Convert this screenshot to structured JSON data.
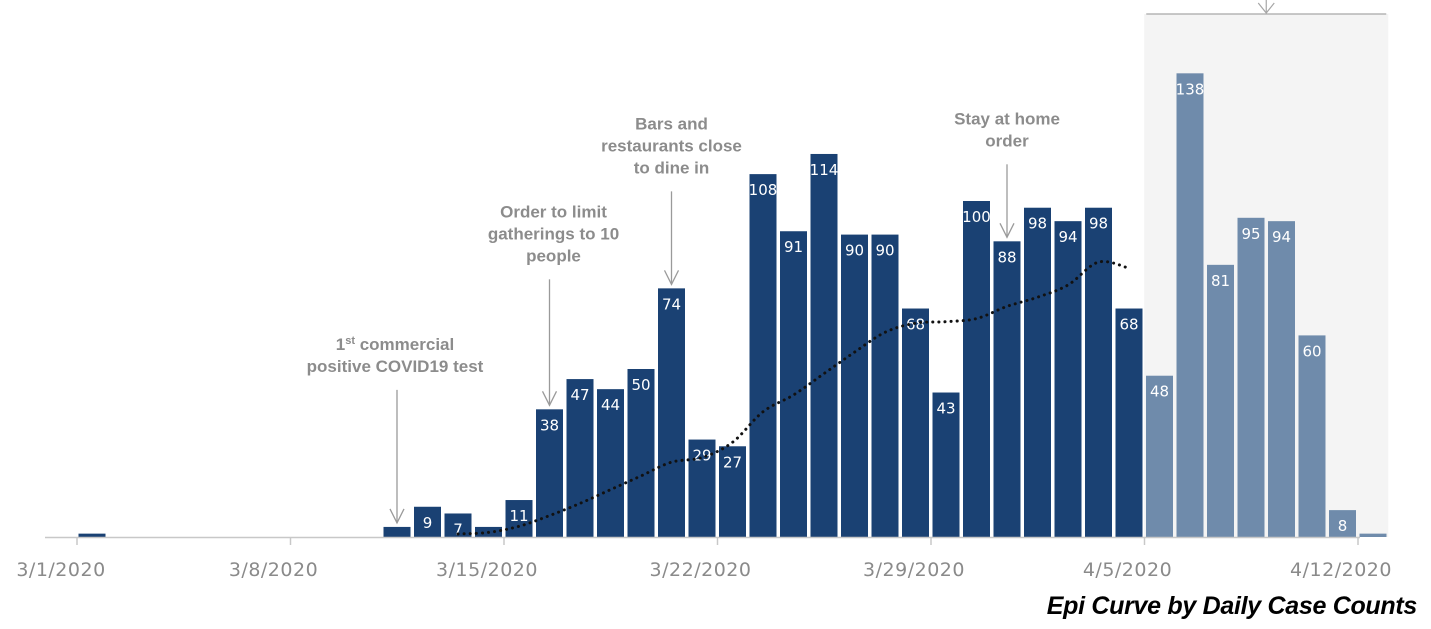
{
  "chart_data": {
    "type": "bar",
    "title": "",
    "caption": "Epi Curve by Daily Case Counts",
    "xlabel": "",
    "ylabel": "",
    "ylim": [
      0,
      150
    ],
    "grid": false,
    "colors": {
      "confirmed": "#1a4173",
      "recent": "#6f8bab",
      "recent_band": "#f4f4f4",
      "trend": "#111111",
      "axis": "#c8c8c8",
      "annotation": "#8c8c8c",
      "caption": "#000000"
    },
    "x_ticks": [
      "3/1/2020",
      "3/8/2020",
      "3/15/2020",
      "3/22/2020",
      "3/29/2020",
      "4/5/2020",
      "4/12/2020"
    ],
    "days": [
      {
        "date": "3/1/2020",
        "value": 1,
        "label": "",
        "recent": false
      },
      {
        "date": "3/2/2020",
        "value": 0,
        "label": "",
        "recent": false
      },
      {
        "date": "3/3/2020",
        "value": 0,
        "label": "",
        "recent": false
      },
      {
        "date": "3/4/2020",
        "value": 0,
        "label": "",
        "recent": false
      },
      {
        "date": "3/5/2020",
        "value": 0,
        "label": "",
        "recent": false
      },
      {
        "date": "3/6/2020",
        "value": 0,
        "label": "",
        "recent": false
      },
      {
        "date": "3/7/2020",
        "value": 0,
        "label": "",
        "recent": false
      },
      {
        "date": "3/8/2020",
        "value": 0,
        "label": "",
        "recent": false
      },
      {
        "date": "3/9/2020",
        "value": 0,
        "label": "",
        "recent": false
      },
      {
        "date": "3/10/2020",
        "value": 0,
        "label": "",
        "recent": false
      },
      {
        "date": "3/11/2020",
        "value": 3,
        "label": "",
        "recent": false
      },
      {
        "date": "3/12/2020",
        "value": 9,
        "label": "9",
        "recent": false
      },
      {
        "date": "3/13/2020",
        "value": 7,
        "label": "7",
        "recent": false
      },
      {
        "date": "3/14/2020",
        "value": 3,
        "label": "",
        "recent": false
      },
      {
        "date": "3/15/2020",
        "value": 11,
        "label": "11",
        "recent": false
      },
      {
        "date": "3/16/2020",
        "value": 38,
        "label": "38",
        "recent": false
      },
      {
        "date": "3/17/2020",
        "value": 47,
        "label": "47",
        "recent": false
      },
      {
        "date": "3/18/2020",
        "value": 44,
        "label": "44",
        "recent": false
      },
      {
        "date": "3/19/2020",
        "value": 50,
        "label": "50",
        "recent": false
      },
      {
        "date": "3/20/2020",
        "value": 74,
        "label": "74",
        "recent": false
      },
      {
        "date": "3/21/2020",
        "value": 29,
        "label": "29",
        "recent": false
      },
      {
        "date": "3/22/2020",
        "value": 27,
        "label": "27",
        "recent": false
      },
      {
        "date": "3/23/2020",
        "value": 108,
        "label": "108",
        "recent": false
      },
      {
        "date": "3/24/2020",
        "value": 91,
        "label": "91",
        "recent": false
      },
      {
        "date": "3/25/2020",
        "value": 114,
        "label": "114",
        "recent": false
      },
      {
        "date": "3/26/2020",
        "value": 90,
        "label": "90",
        "recent": false
      },
      {
        "date": "3/27/2020",
        "value": 90,
        "label": "90",
        "recent": false
      },
      {
        "date": "3/28/2020",
        "value": 68,
        "label": "68",
        "recent": false
      },
      {
        "date": "3/29/2020",
        "value": 43,
        "label": "43",
        "recent": false
      },
      {
        "date": "3/30/2020",
        "value": 100,
        "label": "100",
        "recent": false
      },
      {
        "date": "3/31/2020",
        "value": 88,
        "label": "88",
        "recent": false
      },
      {
        "date": "4/1/2020",
        "value": 98,
        "label": "98",
        "recent": false
      },
      {
        "date": "4/2/2020",
        "value": 94,
        "label": "94",
        "recent": false
      },
      {
        "date": "4/3/2020",
        "value": 98,
        "label": "98",
        "recent": false
      },
      {
        "date": "4/4/2020",
        "value": 68,
        "label": "68",
        "recent": false
      },
      {
        "date": "4/5/2020",
        "value": 48,
        "label": "48",
        "recent": true
      },
      {
        "date": "4/6/2020",
        "value": 138,
        "label": "138",
        "recent": true
      },
      {
        "date": "4/7/2020",
        "value": 81,
        "label": "81",
        "recent": true
      },
      {
        "date": "4/8/2020",
        "value": 95,
        "label": "95",
        "recent": true
      },
      {
        "date": "4/9/2020",
        "value": 94,
        "label": "94",
        "recent": true
      },
      {
        "date": "4/10/2020",
        "value": 60,
        "label": "60",
        "recent": true
      },
      {
        "date": "4/11/2020",
        "value": 8,
        "label": "8",
        "recent": true
      },
      {
        "date": "4/12/2020",
        "value": 1,
        "label": "",
        "recent": true
      }
    ],
    "trendline": {
      "style": "dotted",
      "points": [
        {
          "date": "3/13/2020",
          "value": 2
        },
        {
          "date": "3/14/2020",
          "value": 3
        },
        {
          "date": "3/15/2020",
          "value": 7
        },
        {
          "date": "3/16/2020",
          "value": 14
        },
        {
          "date": "3/17/2020",
          "value": 22
        },
        {
          "date": "3/18/2020",
          "value": 31
        },
        {
          "date": "3/19/2020",
          "value": 40
        },
        {
          "date": "3/20/2020",
          "value": 49
        },
        {
          "date": "3/21/2020",
          "value": 52
        },
        {
          "date": "3/22/2020",
          "value": 62
        },
        {
          "date": "3/23/2020",
          "value": 82
        },
        {
          "date": "3/24/2020",
          "value": 93
        },
        {
          "date": "3/25/2020",
          "value": 107
        },
        {
          "date": "3/26/2020",
          "value": 121
        },
        {
          "date": "3/27/2020",
          "value": 134
        },
        {
          "date": "3/28/2020",
          "value": 140
        },
        {
          "date": "3/29/2020",
          "value": 141
        },
        {
          "date": "3/30/2020",
          "value": 143
        },
        {
          "date": "3/31/2020",
          "value": 151
        },
        {
          "date": "4/1/2020",
          "value": 157
        },
        {
          "date": "4/2/2020",
          "value": 165
        },
        {
          "date": "4/3/2020",
          "value": 180
        },
        {
          "date": "4/4/2020",
          "value": 176
        }
      ],
      "scale_max": 330
    },
    "annotations": [
      {
        "lines": [
          "1st commercial",
          "positive COVID19 test"
        ],
        "superscript": "st",
        "date": "3/11/2020"
      },
      {
        "lines": [
          "Order to limit",
          "gatherings to 10",
          "people"
        ],
        "date": "3/16/2020"
      },
      {
        "lines": [
          "Bars and",
          "restaurants close",
          "to dine in"
        ],
        "date": "3/20/2020"
      },
      {
        "lines": [
          "Stay at home",
          "order"
        ],
        "date": "3/31/2020"
      }
    ]
  }
}
